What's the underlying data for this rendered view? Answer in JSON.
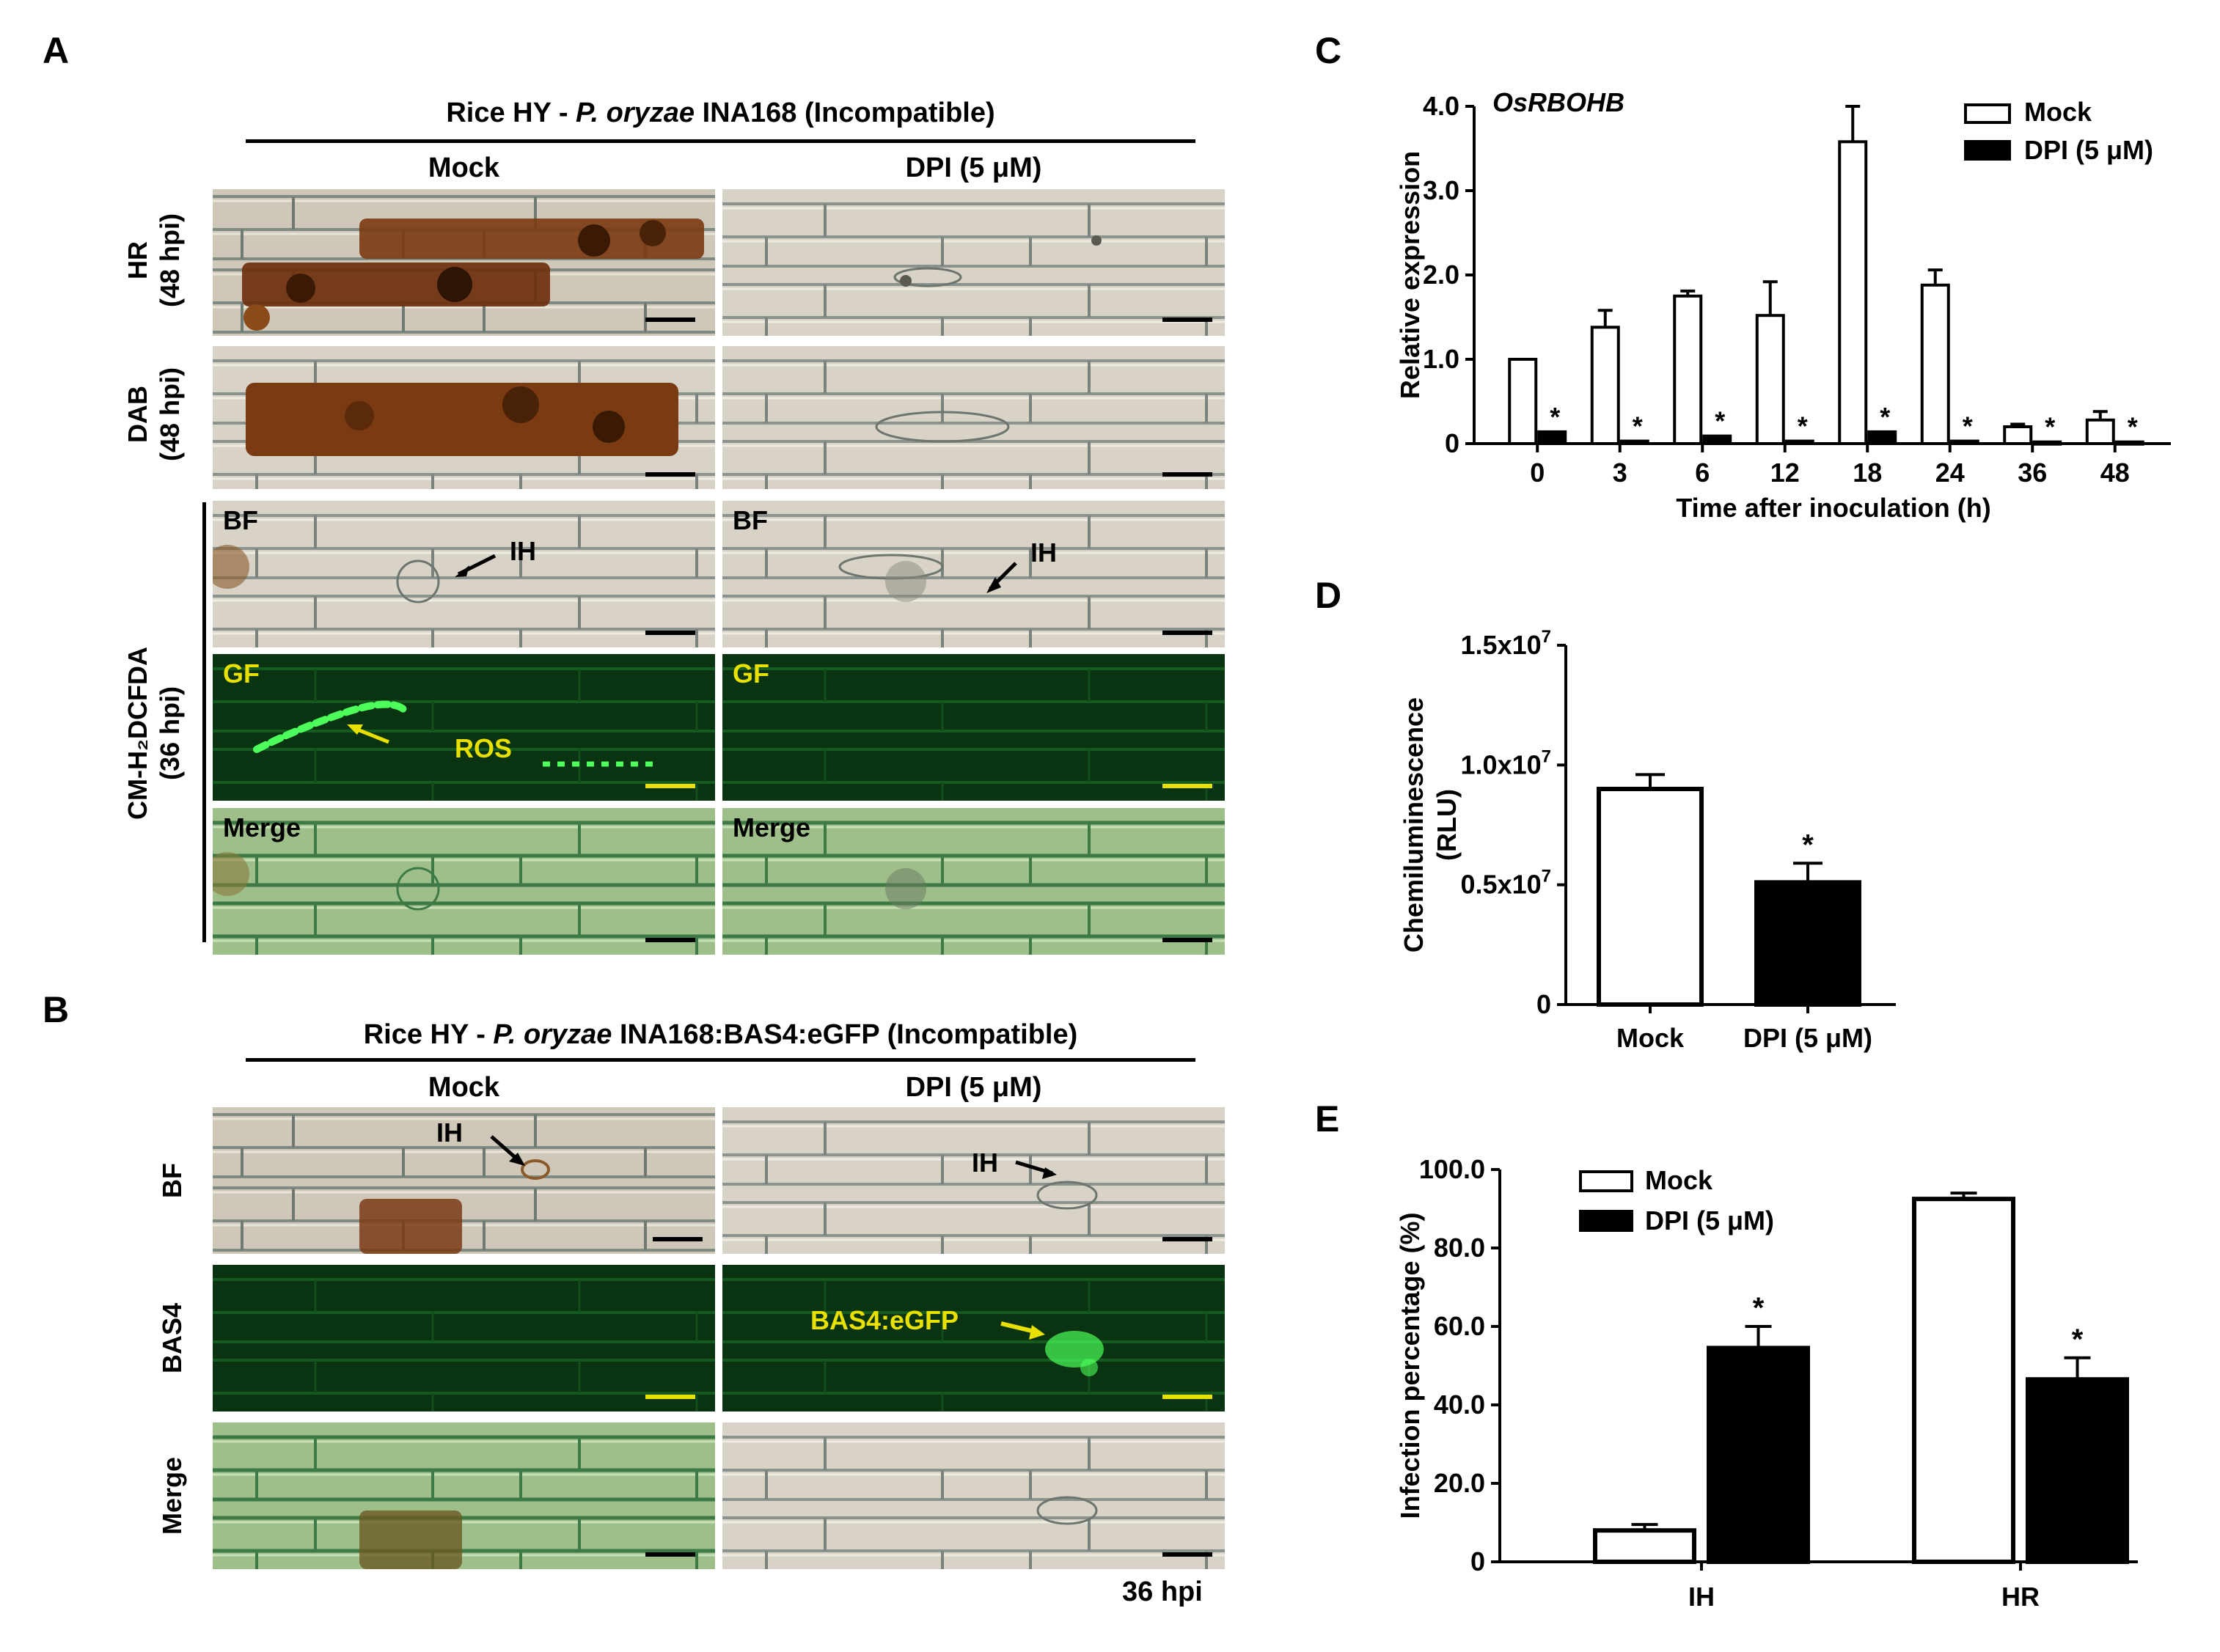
{
  "panel_letters": {
    "a": "A",
    "b": "B",
    "c": "C",
    "d": "D",
    "e": "E"
  },
  "panel_A": {
    "header_prefix": "Rice HY - ",
    "header_species": "P. oryzae",
    "header_suffix": " INA168 (Incompatible)",
    "col_mock": "Mock",
    "col_dpi": "DPI (5 μM)",
    "row_hr": [
      "HR",
      "(48 hpi)"
    ],
    "row_dab": [
      "DAB",
      "(48 hpi)"
    ],
    "row_cm_line1": "CM-H₂DCFDA",
    "row_cm_line2": "(36 hpi)",
    "tag_bf": "BF",
    "tag_gf": "GF",
    "tag_merge": "Merge",
    "ann_ih": "IH",
    "ann_ros": "ROS"
  },
  "panel_B": {
    "header_prefix": "Rice HY - ",
    "header_species": "P. oryzae",
    "header_suffix": " INA168:BAS4:eGFP  (Incompatible)",
    "col_mock": "Mock",
    "col_dpi": "DPI (5 μM)",
    "row_bf": "BF",
    "row_bas4": "BAS4",
    "row_merge": "Merge",
    "ann_ih": "IH",
    "ann_bas4": "BAS4:eGFP",
    "footer": "36 hpi"
  },
  "colors": {
    "brightfield": "#c9c2b2",
    "dab_stain": "#7a3a12",
    "gfp_bg": "#0b3a12",
    "gfp_signal": "#4cff5a",
    "scale_light": "#e8e000"
  },
  "chart_data": [
    {
      "id": "C",
      "type": "bar",
      "title": "OsRBOHB",
      "xlabel": "Time after inoculation (h)",
      "ylabel": "Relative expression",
      "categories": [
        "0",
        "3",
        "6",
        "12",
        "18",
        "24",
        "36",
        "48"
      ],
      "series": [
        {
          "name": "Mock",
          "values": [
            1.0,
            1.38,
            1.75,
            1.52,
            3.58,
            1.88,
            0.2,
            0.28
          ],
          "errors": [
            0,
            0.2,
            0.06,
            0.4,
            0.42,
            0.18,
            0.03,
            0.1
          ]
        },
        {
          "name": "DPI (5 μM)",
          "values": [
            0.14,
            0.03,
            0.09,
            0.03,
            0.14,
            0.03,
            0.02,
            0.02
          ],
          "errors": [
            0.02,
            0.0,
            0.01,
            0.0,
            0.02,
            0.0,
            0.0,
            0.0
          ]
        }
      ],
      "significance": [
        "*",
        "*",
        "*",
        "*",
        "*",
        "*",
        "*",
        "*"
      ],
      "yticks": [
        "0",
        "1.0",
        "2.0",
        "3.0",
        "4.0"
      ],
      "ylim": [
        0,
        4
      ],
      "legend": "top-right"
    },
    {
      "id": "D",
      "type": "bar",
      "xlabel": "",
      "ylabel_line1": "Chemiluminescence",
      "ylabel_line2": "(RLU)",
      "categories": [
        "Mock",
        "DPI (5 μM)"
      ],
      "values": [
        9000000.0,
        5100000.0
      ],
      "errors": [
        600000.0,
        800000.0
      ],
      "significance": [
        "",
        "*"
      ],
      "yticks": [
        {
          "value": 0,
          "base": "0",
          "exp": ""
        },
        {
          "value": 5000000,
          "base": "0.5x10",
          "exp": "7"
        },
        {
          "value": 10000000,
          "base": "1.0x10",
          "exp": "7"
        },
        {
          "value": 15000000,
          "base": "1.5x10",
          "exp": "7"
        }
      ],
      "ylim": [
        0,
        15000000
      ]
    },
    {
      "id": "E",
      "type": "bar",
      "xlabel": "",
      "ylabel": "Infection percentage (%)",
      "categories": [
        "IH",
        "HR"
      ],
      "series": [
        {
          "name": "Mock",
          "values": [
            8,
            92.5
          ],
          "errors": [
            1.5,
            1.5
          ]
        },
        {
          "name": "DPI (5 μM)",
          "values": [
            54.5,
            46.5
          ],
          "errors": [
            5.5,
            5.5
          ]
        }
      ],
      "significance": [
        "*",
        "*"
      ],
      "yticks": [
        "0",
        "20.0",
        "40.0",
        "60.0",
        "80.0",
        "100.0"
      ],
      "ylim": [
        0,
        100
      ],
      "legend": "top-left"
    }
  ]
}
